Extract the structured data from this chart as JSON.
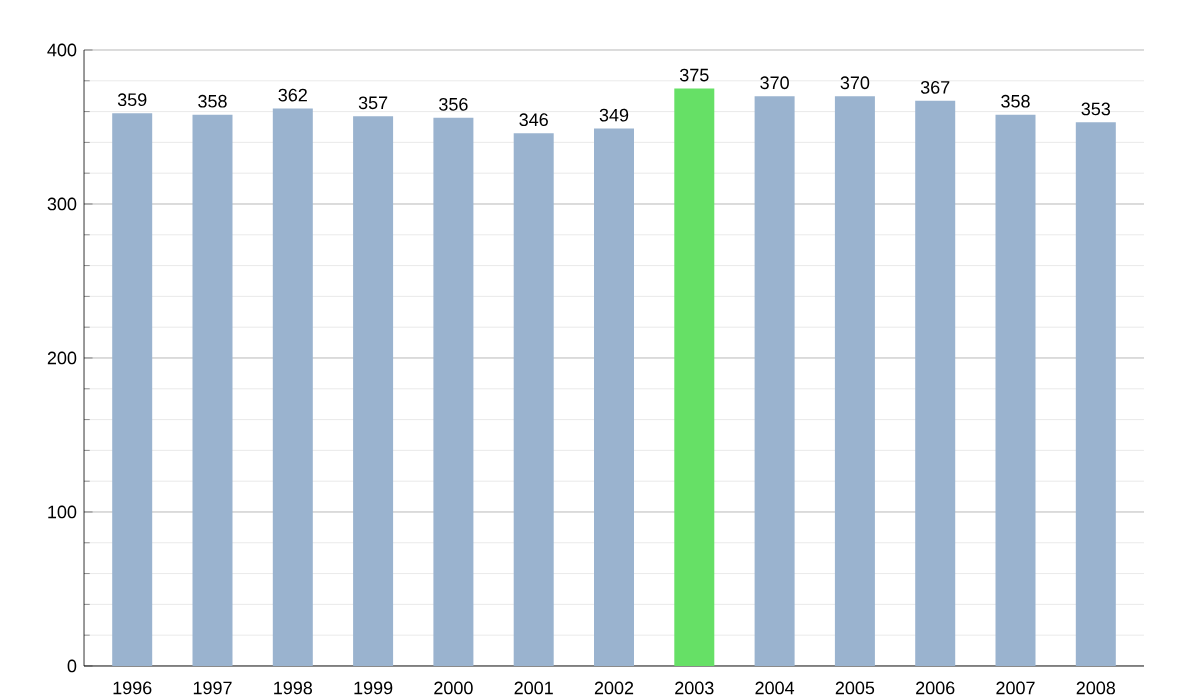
{
  "chart_data": {
    "type": "bar",
    "categories": [
      "1996",
      "1997",
      "1998",
      "1999",
      "2000",
      "2001",
      "2002",
      "2003",
      "2004",
      "2005",
      "2006",
      "2007",
      "2008"
    ],
    "values": [
      359,
      358,
      362,
      357,
      356,
      346,
      349,
      375,
      370,
      370,
      367,
      358,
      353
    ],
    "colors": [
      "#9ab3cf",
      "#9ab3cf",
      "#9ab3cf",
      "#9ab3cf",
      "#9ab3cf",
      "#9ab3cf",
      "#9ab3cf",
      "#66e066",
      "#9ab3cf",
      "#9ab3cf",
      "#9ab3cf",
      "#9ab3cf",
      "#9ab3cf"
    ],
    "ylim": [
      0,
      400
    ],
    "yticks": [
      0,
      100,
      200,
      300,
      400
    ],
    "grid": "y",
    "data_labels": true
  }
}
